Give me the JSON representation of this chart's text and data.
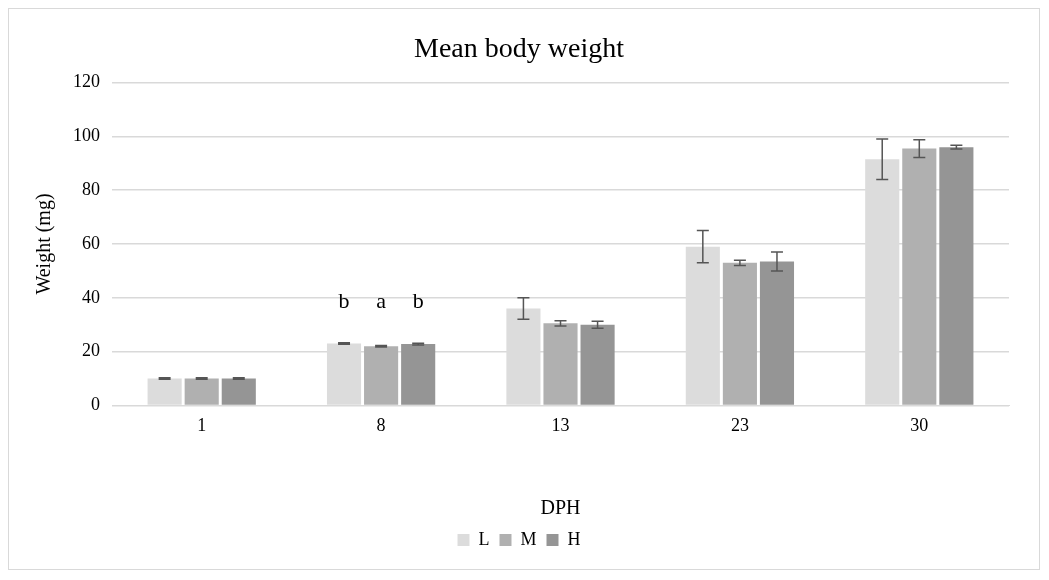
{
  "chart_data": {
    "type": "bar",
    "title": "Mean body weight",
    "xlabel": "DPH",
    "ylabel": "Weight (mg)",
    "categories": [
      "1",
      "8",
      "13",
      "23",
      "30"
    ],
    "series": [
      {
        "name": "L",
        "color": "#dcdcdc",
        "values": [
          10,
          23,
          36,
          59,
          91.5
        ],
        "errors": [
          0.3,
          0.3,
          4,
          6,
          7.5
        ]
      },
      {
        "name": "M",
        "color": "#b0b0b0",
        "values": [
          10,
          22,
          30.5,
          53,
          95.5
        ],
        "errors": [
          0.3,
          0.3,
          1,
          1,
          3.3
        ]
      },
      {
        "name": "H",
        "color": "#959595",
        "values": [
          10,
          22.8,
          30,
          53.5,
          96
        ],
        "errors": [
          0.3,
          0.3,
          1.3,
          3.5,
          0.7
        ]
      }
    ],
    "annotations": [
      "b",
      "a",
      "b"
    ],
    "ylim": [
      0,
      120
    ],
    "yticks": [
      0,
      20,
      40,
      60,
      80,
      100,
      120
    ],
    "grid": "y",
    "legend": "bottom"
  }
}
